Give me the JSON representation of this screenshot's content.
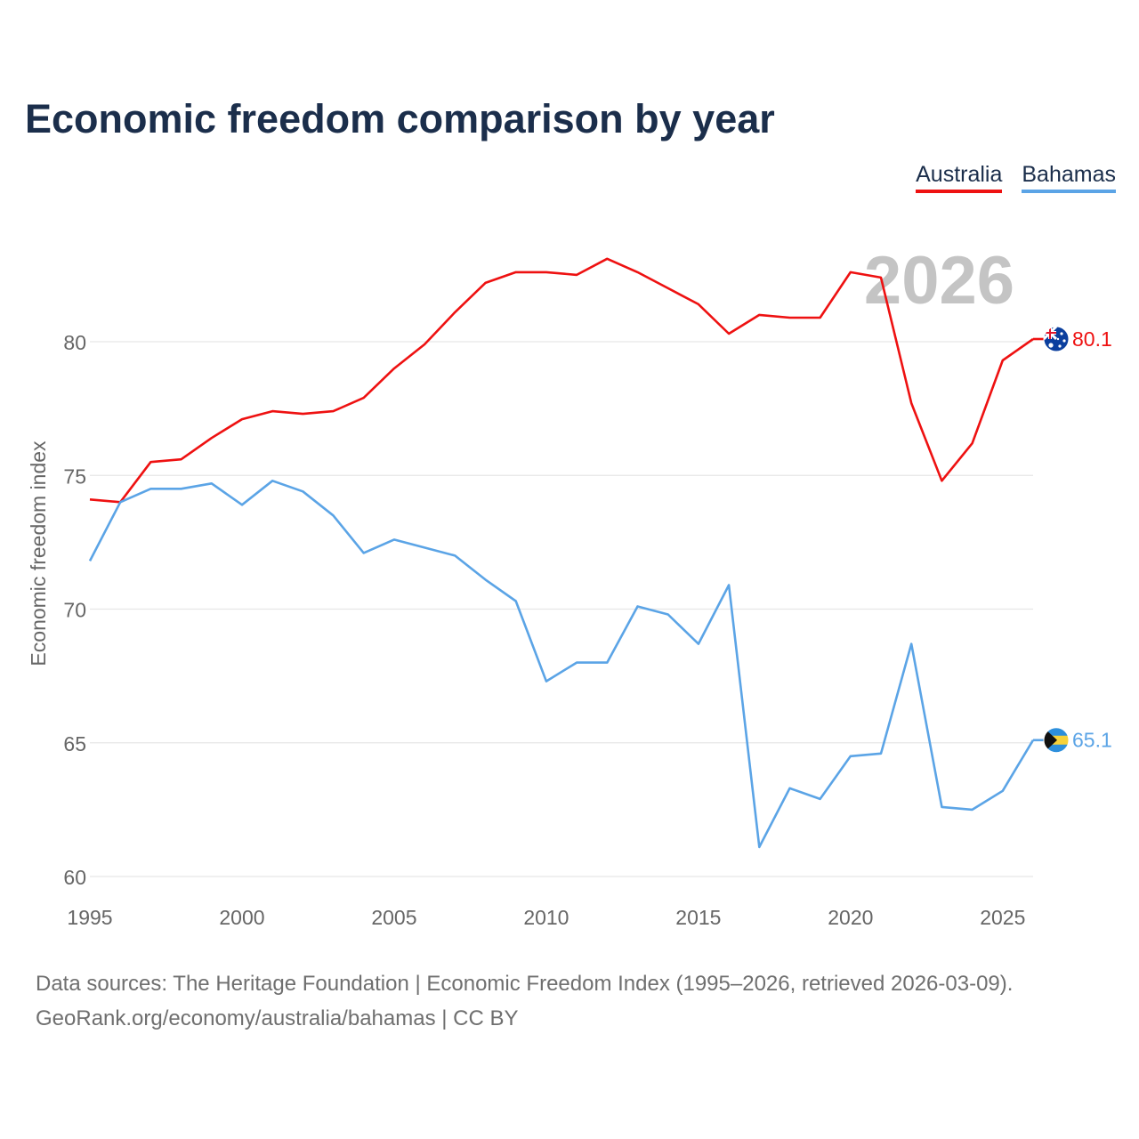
{
  "chart_data": {
    "type": "line",
    "title": "Economic freedom comparison by year",
    "xlabel": "",
    "ylabel": "Economic freedom index",
    "xlim": [
      1995,
      2026
    ],
    "ylim": [
      60,
      84
    ],
    "yticks": [
      60,
      65,
      70,
      75,
      80
    ],
    "xticks": [
      1995,
      2000,
      2005,
      2010,
      2015,
      2020,
      2025
    ],
    "grid": true,
    "legend_position": "top-right",
    "year_watermark": "2026",
    "x": [
      1995,
      1996,
      1997,
      1998,
      1999,
      2000,
      2001,
      2002,
      2003,
      2004,
      2005,
      2006,
      2007,
      2008,
      2009,
      2010,
      2011,
      2012,
      2013,
      2014,
      2015,
      2016,
      2017,
      2018,
      2019,
      2020,
      2021,
      2022,
      2023,
      2024,
      2025,
      2026
    ],
    "series": [
      {
        "name": "Australia",
        "color": "#ee1111",
        "end_label": "80.1",
        "flag_icon": "australia-flag-icon",
        "values": [
          74.1,
          74.0,
          75.5,
          75.6,
          76.4,
          77.1,
          77.4,
          77.3,
          77.4,
          77.9,
          79.0,
          79.9,
          81.1,
          82.2,
          82.6,
          82.6,
          82.5,
          83.1,
          82.6,
          82.0,
          81.4,
          80.3,
          81.0,
          80.9,
          80.9,
          82.6,
          82.4,
          77.7,
          74.8,
          76.2,
          79.3,
          80.1
        ]
      },
      {
        "name": "Bahamas",
        "color": "#5ba4e6",
        "end_label": "65.1",
        "flag_icon": "bahamas-flag-icon",
        "values": [
          71.8,
          74.0,
          74.5,
          74.5,
          74.7,
          73.9,
          74.8,
          74.4,
          73.5,
          72.1,
          72.6,
          72.3,
          72.0,
          71.1,
          70.3,
          67.3,
          68.0,
          68.0,
          70.1,
          69.8,
          68.7,
          70.9,
          61.1,
          63.3,
          62.9,
          64.5,
          64.6,
          68.7,
          62.6,
          62.5,
          63.2,
          65.1
        ]
      }
    ]
  },
  "source": {
    "line1": "Data sources: The Heritage Foundation | Economic Freedom Index (1995–2026, retrieved 2026-03-09).",
    "line2": "GeoRank.org/economy/australia/bahamas | CC BY"
  },
  "colors": {
    "title": "#1b2e4b",
    "grid": "#e6e6e6",
    "axis_text": "#666666",
    "watermark": "#c4c4c4"
  }
}
